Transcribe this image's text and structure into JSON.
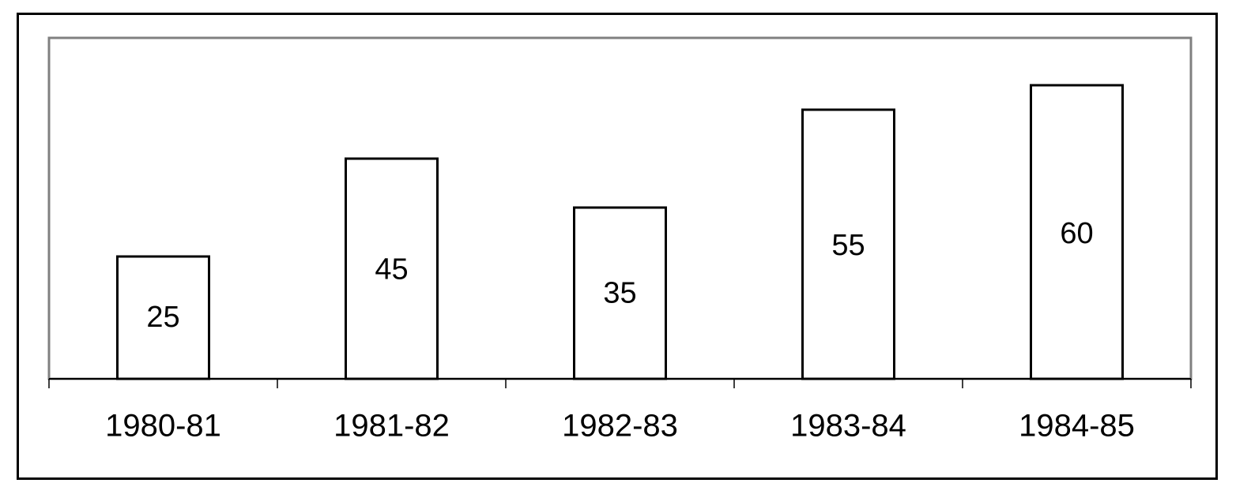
{
  "chart_data": {
    "type": "bar",
    "categories": [
      "1980-81",
      "1981-82",
      "1982-83",
      "1983-84",
      "1984-85"
    ],
    "values": [
      25,
      45,
      35,
      55,
      60
    ],
    "data_labels": [
      "25",
      "45",
      "35",
      "55",
      "60"
    ],
    "ylim": [
      0,
      70
    ],
    "grid": false,
    "legend": "none",
    "colors": {
      "bar_fill": "#ffffff",
      "bar_stroke": "#000000",
      "plot_border": "#808080"
    }
  }
}
